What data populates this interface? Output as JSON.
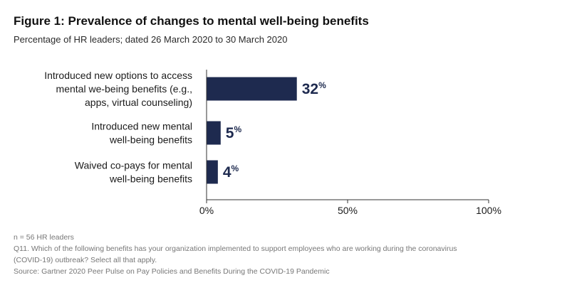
{
  "header": {
    "title": "Figure 1: Prevalence of changes to mental well-being benefits",
    "subtitle": "Percentage of HR leaders; dated 26 March 2020 to 30 March 2020"
  },
  "colors": {
    "bar": "#1e2a4f",
    "axis": "#333333",
    "label": "#1b1b1b",
    "value": "#1e2a4f"
  },
  "chart_data": {
    "type": "bar",
    "orientation": "horizontal",
    "categories": [
      [
        "Introduced new options to access",
        "mental we-being benefits (e.g.,",
        "apps, virtual counseling)"
      ],
      [
        "Introduced new mental",
        "well-being benefits"
      ],
      [
        "Waived co-pays for mental",
        "well-being benefits"
      ]
    ],
    "values": [
      32,
      5,
      4
    ],
    "value_labels": [
      "32",
      "5",
      "4"
    ],
    "value_suffix": "%",
    "xlim": [
      0,
      100
    ],
    "xticks": [
      0,
      50,
      100
    ],
    "xtick_labels": [
      "0%",
      "50%",
      "100%"
    ],
    "grid": false
  },
  "footnotes": {
    "n": "n = 56 HR leaders",
    "question_line1": "Q11. Which of the following benefits has your organization implemented to support employees who are working during the coronavirus",
    "question_line2": "(COVID-19) outbreak? Select all that apply.",
    "source": "Source: Gartner 2020 Peer Pulse on Pay Policies and Benefits During the COVID-19 Pandemic"
  }
}
